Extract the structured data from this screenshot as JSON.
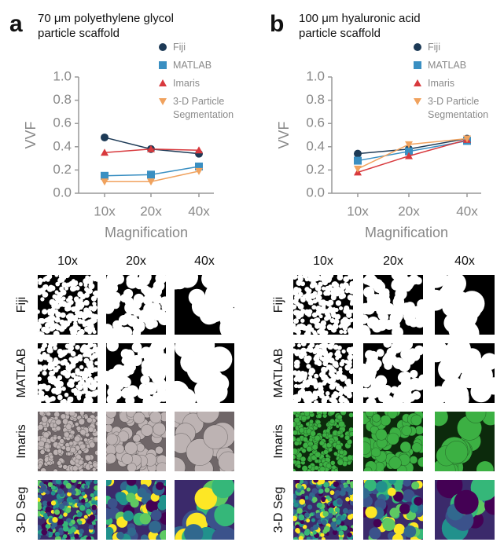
{
  "chart_data": [
    {
      "type": "line",
      "panel": "a",
      "title": "70 μm polyethylene glycol particle scaffold",
      "categories": [
        "10x",
        "20x",
        "40x"
      ],
      "x_label": "Magnification",
      "y_label": "VVF",
      "ylim": [
        0,
        1
      ],
      "yticks": [
        {
          "value": 0,
          "label": "0.0"
        },
        0.2,
        0.4,
        0.6,
        0.8,
        {
          "value": 1,
          "label": "1.0"
        }
      ],
      "series": [
        {
          "name": "Fiji",
          "color": "#1d3a56",
          "marker": "circle",
          "values": [
            0.48,
            0.38,
            0.34
          ]
        },
        {
          "name": "MATLAB",
          "color": "#3a8fc2",
          "marker": "square",
          "values": [
            0.15,
            0.16,
            0.23
          ]
        },
        {
          "name": "Imaris",
          "color": "#d8393d",
          "marker": "triangle-up",
          "values": [
            0.35,
            0.38,
            0.37
          ]
        },
        {
          "name": "3-D Particle Segmentation",
          "color": "#f0a25e",
          "marker": "triangle-down",
          "values": [
            0.1,
            0.1,
            0.19
          ]
        }
      ]
    },
    {
      "type": "line",
      "panel": "b",
      "title": "100 μm hyaluronic acid particle scaffold",
      "categories": [
        "10x",
        "20x",
        "40x"
      ],
      "x_label": "Magnification",
      "y_label": "VVF",
      "ylim": [
        0,
        1
      ],
      "yticks": [
        {
          "value": 0,
          "label": "0.0"
        },
        0.2,
        0.4,
        0.6,
        0.8,
        {
          "value": 1,
          "label": "1.0"
        }
      ],
      "series": [
        {
          "name": "Fiji",
          "color": "#1d3a56",
          "marker": "circle",
          "values": [
            0.34,
            0.38,
            0.47
          ]
        },
        {
          "name": "MATLAB",
          "color": "#3a8fc2",
          "marker": "square",
          "values": [
            0.28,
            0.36,
            0.45
          ]
        },
        {
          "name": "Imaris",
          "color": "#d8393d",
          "marker": "triangle-up",
          "values": [
            0.18,
            0.32,
            0.46
          ]
        },
        {
          "name": "3-D Particle Segmentation",
          "color": "#f0a25e",
          "marker": "triangle-down",
          "values": [
            0.21,
            0.42,
            0.47
          ]
        }
      ]
    }
  ],
  "image_grids": [
    {
      "columns": [
        "10x",
        "20x",
        "40x"
      ],
      "rows": [
        "Fiji",
        "MATLAB",
        "Imaris",
        "3-D Seg"
      ]
    },
    {
      "columns": [
        "10x",
        "20x",
        "40x"
      ],
      "rows": [
        "Fiji",
        "MATLAB",
        "Imaris",
        "3-D Seg"
      ]
    }
  ]
}
